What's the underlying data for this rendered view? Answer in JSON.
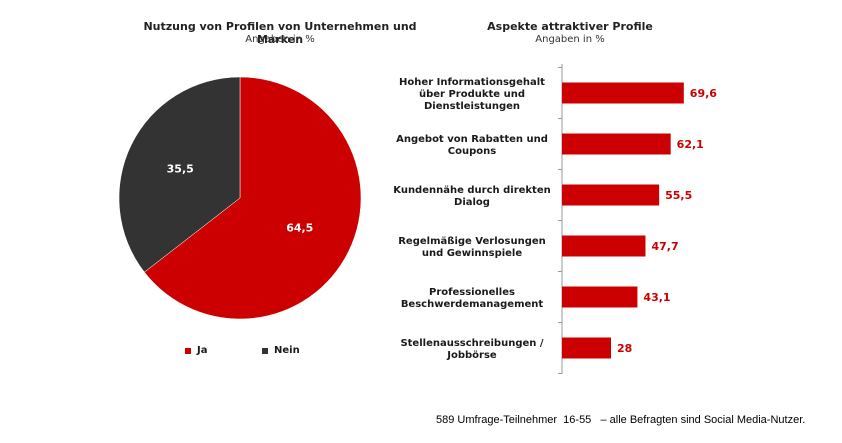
{
  "chart_data": [
    {
      "type": "pie",
      "title": "Nutzung von Profilen von Unternehmen und Marken",
      "subtitle": "Angaben in %",
      "slices": [
        {
          "label": "Ja",
          "value": 64.5,
          "display": "64,5",
          "color": "#cc0000"
        },
        {
          "label": "Nein",
          "value": 35.5,
          "display": "35,5",
          "color": "#333333"
        }
      ],
      "legend_position": "bottom"
    },
    {
      "type": "bar",
      "orientation": "horizontal",
      "title": "Aspekte attraktiver Profile",
      "subtitle": "Angaben in %",
      "categories": [
        [
          "Hoher Informationsgehalt",
          "über Produkte und",
          "Dienstleistungen"
        ],
        [
          "Angebot von Rabatten und",
          "Coupons"
        ],
        [
          "Kundennähe durch direkten",
          "Dialog"
        ],
        [
          "Regelmäßige Verlosungen",
          "und Gewinnspiele"
        ],
        [
          "Professionelles",
          "Beschwerdemanagement"
        ],
        [
          "Stellenausschreibungen /",
          "Jobbörse"
        ]
      ],
      "values": [
        69.6,
        62.1,
        55.5,
        47.7,
        43.1,
        28
      ],
      "value_labels": [
        "69,6",
        "62,1",
        "55,5",
        "47,7",
        "43,1",
        "28"
      ],
      "bar_color": "#cc0000",
      "value_color": "#cc0000",
      "xlim": [
        0,
        100
      ]
    }
  ],
  "footer": "589 Umfrage-Teilnehmer  16-55   – alle Befragten sind Social Media-Nutzer."
}
